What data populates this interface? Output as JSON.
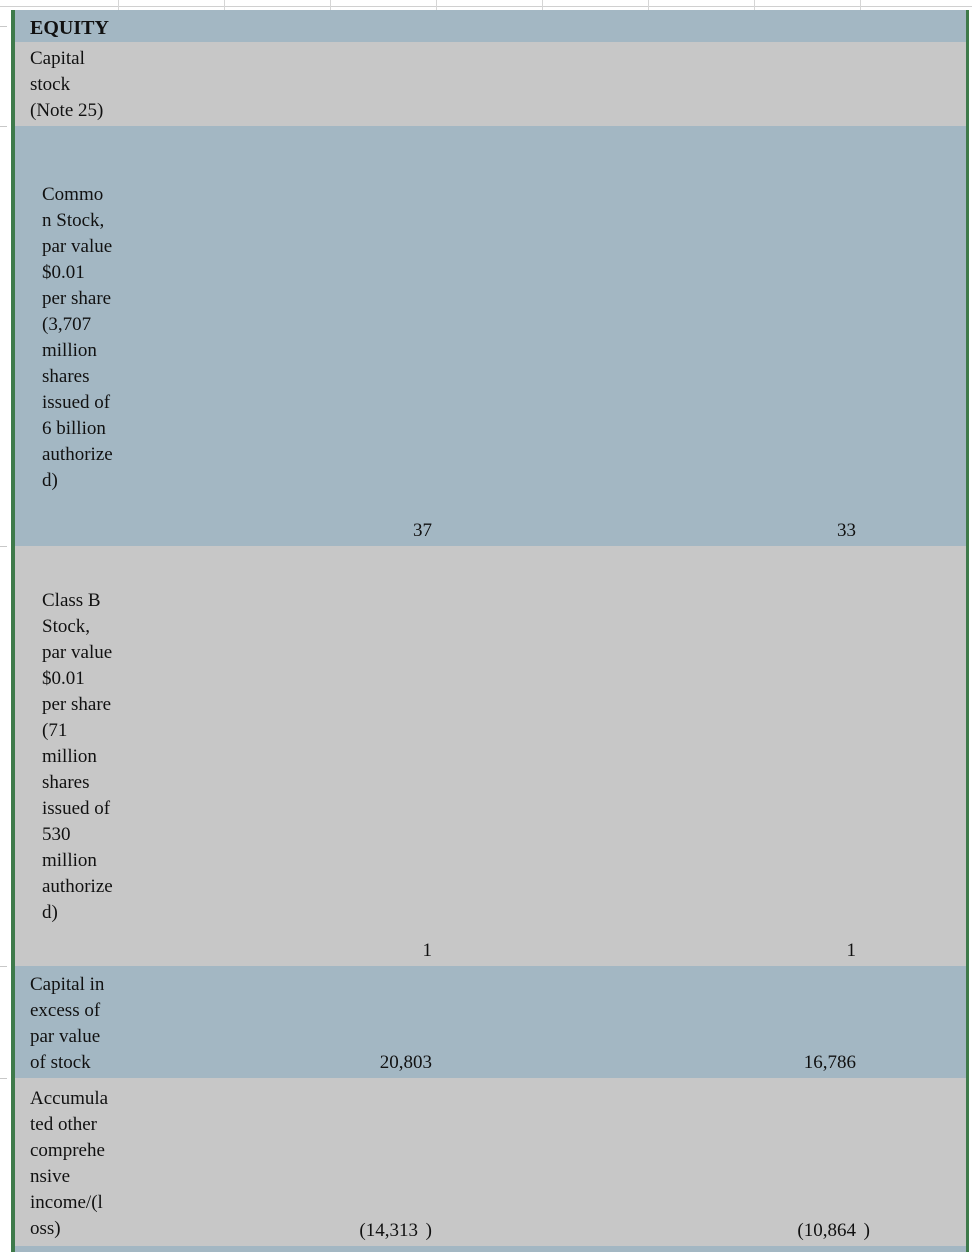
{
  "rows": {
    "equity": {
      "label": "EQUITY"
    },
    "capital_stock": {
      "label": "Capital\nstock\n(Note 25)"
    },
    "common_stock": {
      "label": "Commo\nn Stock,\npar value\n$0.01\nper share\n(3,707\nmillion\nshares\nissued of\n6 billion\nauthorize\nd)",
      "value_1": "37",
      "value_2": "33"
    },
    "class_b_stock": {
      "label": "Class B\nStock,\npar value\n$0.01\nper share\n(71\nmillion\nshares\nissued of\n530\nmillion\nauthorize\nd)",
      "value_1": "1",
      "value_2": "1"
    },
    "capital_in_excess": {
      "label": "Capital in\nexcess of\npar value\nof stock",
      "value_1": "20,803",
      "value_2": "16,786"
    },
    "aoci": {
      "label": "Accumula\nted other\ncomprehe\nnsive\nincome/(l\noss)",
      "value_1": "(14,313",
      "value_2": "(10,864",
      "close_paren": ")"
    }
  },
  "colors": {
    "band_blue": "#a3b7c3",
    "band_gray": "#c7c7c7",
    "border_green": "#3e7a4a"
  }
}
